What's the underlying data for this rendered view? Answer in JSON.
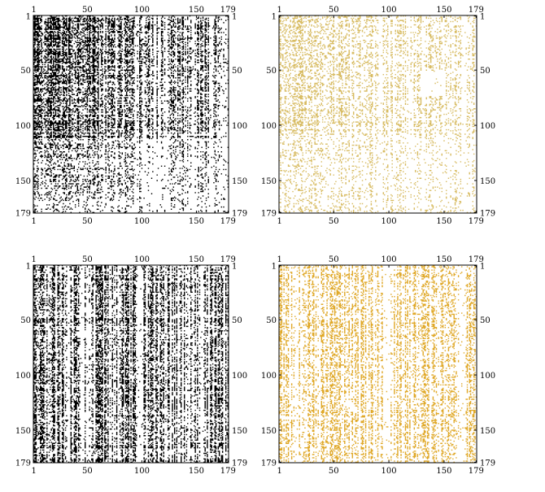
{
  "chart_data": [
    {
      "type": "heatmap",
      "name": "matrix-plot-top-left",
      "matrix_size": 179,
      "x_ticks": [
        1,
        50,
        100,
        150,
        179
      ],
      "y_ticks": [
        1,
        50,
        100,
        150,
        179
      ],
      "color": "#000000",
      "density": "high",
      "pattern": "dense upper-left block, vertical bands, sparser lower rows"
    },
    {
      "type": "heatmap",
      "name": "matrix-plot-top-right",
      "matrix_size": 179,
      "x_ticks": [
        1,
        50,
        100,
        150,
        179
      ],
      "y_ticks": [
        1,
        50,
        100,
        150,
        179
      ],
      "color": "#d8bc63",
      "density": "medium",
      "pattern": "light vertical bands, gap near rows 50-70 around columns 130-150"
    },
    {
      "type": "heatmap",
      "name": "matrix-plot-bottom-left",
      "matrix_size": 179,
      "x_ticks": [
        1,
        50,
        100,
        150,
        179
      ],
      "y_ticks": [
        1,
        50,
        100,
        150,
        179
      ],
      "color": "#000000",
      "density": "high",
      "pattern": "strong vertical column bands across full height"
    },
    {
      "type": "heatmap",
      "name": "matrix-plot-bottom-right",
      "matrix_size": 179,
      "x_ticks": [
        1,
        50,
        100,
        150,
        179
      ],
      "y_ticks": [
        1,
        50,
        100,
        150,
        179
      ],
      "color": "#e0a92a",
      "density": "medium",
      "pattern": "vertical column bands across full height"
    }
  ]
}
